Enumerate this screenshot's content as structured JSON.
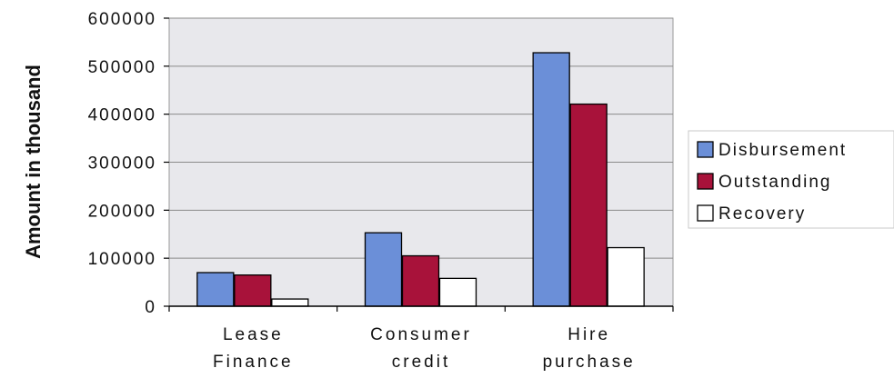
{
  "chart_data": {
    "type": "bar",
    "title": "",
    "xlabel": "",
    "ylabel": "Amount in thousand",
    "categories": [
      [
        "Lease",
        "Finance"
      ],
      [
        "Consumer",
        "credit"
      ],
      [
        "Hire",
        "purchase"
      ]
    ],
    "series": [
      {
        "name": "Disbursement",
        "color": "#6b8fd8",
        "values": [
          70000,
          153000,
          528000
        ]
      },
      {
        "name": "Outstanding",
        "color": "#a8123a",
        "values": [
          65000,
          105000,
          421000
        ]
      },
      {
        "name": "Recovery",
        "color": "#ffffff",
        "values": [
          15000,
          58000,
          122000
        ]
      }
    ],
    "ylim": [
      0,
      600000
    ],
    "yticks": [
      0,
      100000,
      200000,
      300000,
      400000,
      500000,
      600000
    ],
    "grid": true,
    "legend_position": "right",
    "plot_background": "#e8e8ec"
  }
}
